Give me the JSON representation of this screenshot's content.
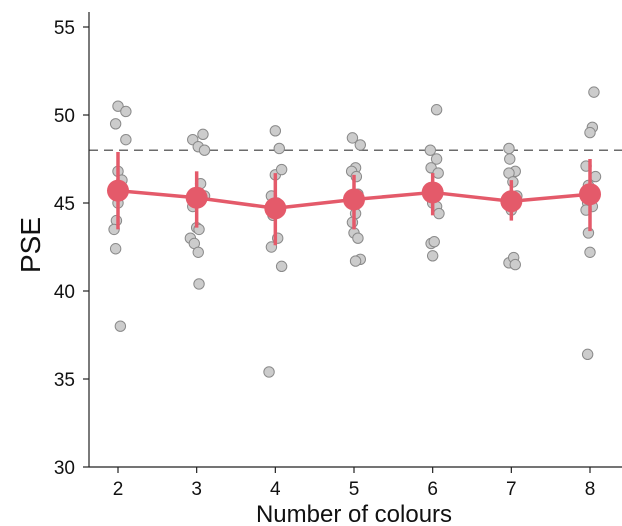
{
  "chart_data": {
    "type": "scatter",
    "title": "",
    "xlabel": "Number of colours",
    "ylabel": "PSE",
    "x_ticks": [
      2,
      3,
      4,
      5,
      6,
      7,
      8
    ],
    "y_ticks": [
      30,
      35,
      40,
      45,
      50,
      55
    ],
    "xlim": [
      1.6,
      8.4
    ],
    "ylim": [
      30,
      56
    ],
    "grid": false,
    "reference_line": {
      "y": 48,
      "style": "dashed",
      "color": "#6b6b6b"
    },
    "colors": {
      "mean": "#e45a6a",
      "points": "#cccccc",
      "point_edge": "#8a8a8a"
    },
    "series": [
      {
        "type": "line",
        "x": [
          2,
          3,
          4,
          5,
          6,
          7,
          8
        ],
        "y": [
          45.7,
          45.3,
          44.7,
          45.2,
          45.6,
          45.1,
          45.5
        ],
        "error_low": [
          43.5,
          43.6,
          42.6,
          43.5,
          44.3,
          44.0,
          43.4
        ],
        "error_high": [
          47.9,
          46.8,
          46.7,
          46.6,
          46.7,
          46.3,
          47.5
        ]
      },
      {
        "type": "scatter",
        "points": [
          [
            2.0,
            50.5
          ],
          [
            2.1,
            50.2
          ],
          [
            1.97,
            49.5
          ],
          [
            2.1,
            48.6
          ],
          [
            2.0,
            46.8
          ],
          [
            2.05,
            46.3
          ],
          [
            2.0,
            45.0
          ],
          [
            1.98,
            44.0
          ],
          [
            1.95,
            43.5
          ],
          [
            1.97,
            42.4
          ],
          [
            2.03,
            38.0
          ],
          [
            1.97,
            45.8
          ],
          [
            2.95,
            48.6
          ],
          [
            3.08,
            48.9
          ],
          [
            3.02,
            48.2
          ],
          [
            3.1,
            48.0
          ],
          [
            3.05,
            46.1
          ],
          [
            3.1,
            45.4
          ],
          [
            2.97,
            45.0
          ],
          [
            2.95,
            44.8
          ],
          [
            3.0,
            43.6
          ],
          [
            3.03,
            43.5
          ],
          [
            2.92,
            43.0
          ],
          [
            2.97,
            42.7
          ],
          [
            3.02,
            42.2
          ],
          [
            3.03,
            40.4
          ],
          [
            4.0,
            49.1
          ],
          [
            4.05,
            48.1
          ],
          [
            4.0,
            46.6
          ],
          [
            4.08,
            46.9
          ],
          [
            3.95,
            45.4
          ],
          [
            4.02,
            45.0
          ],
          [
            4.0,
            44.5
          ],
          [
            3.97,
            44.3
          ],
          [
            4.03,
            43.0
          ],
          [
            3.95,
            42.5
          ],
          [
            4.08,
            41.4
          ],
          [
            3.92,
            35.4
          ],
          [
            4.98,
            48.7
          ],
          [
            5.08,
            48.3
          ],
          [
            5.02,
            47.0
          ],
          [
            4.97,
            46.8
          ],
          [
            5.03,
            46.5
          ],
          [
            5.05,
            45.5
          ],
          [
            4.96,
            45.2
          ],
          [
            5.02,
            44.4
          ],
          [
            4.98,
            43.9
          ],
          [
            5.0,
            43.3
          ],
          [
            5.05,
            43.0
          ],
          [
            5.08,
            41.8
          ],
          [
            5.02,
            41.7
          ],
          [
            6.05,
            50.3
          ],
          [
            5.97,
            48.0
          ],
          [
            6.05,
            47.5
          ],
          [
            5.98,
            47.0
          ],
          [
            6.07,
            46.7
          ],
          [
            6.03,
            45.4
          ],
          [
            6.0,
            45.0
          ],
          [
            6.05,
            44.8
          ],
          [
            6.08,
            44.4
          ],
          [
            5.98,
            42.7
          ],
          [
            6.02,
            42.8
          ],
          [
            6.0,
            42.0
          ]
        ]
      },
      {
        "type": "scatter",
        "points": [
          [
            6.97,
            48.1
          ],
          [
            6.98,
            47.5
          ],
          [
            7.05,
            46.8
          ],
          [
            6.97,
            46.7
          ],
          [
            7.02,
            46.2
          ],
          [
            7.07,
            45.4
          ],
          [
            6.95,
            45.0
          ],
          [
            7.0,
            44.6
          ],
          [
            6.97,
            41.6
          ],
          [
            7.03,
            41.9
          ],
          [
            7.05,
            41.5
          ],
          [
            8.05,
            51.3
          ],
          [
            8.03,
            49.3
          ],
          [
            8.0,
            49.0
          ],
          [
            7.95,
            47.1
          ],
          [
            8.07,
            46.5
          ],
          [
            7.98,
            46.0
          ],
          [
            8.05,
            45.5
          ],
          [
            7.97,
            45.0
          ],
          [
            8.03,
            44.8
          ],
          [
            7.95,
            44.6
          ],
          [
            7.98,
            43.3
          ],
          [
            8.0,
            42.2
          ],
          [
            7.97,
            36.4
          ]
        ]
      }
    ]
  }
}
